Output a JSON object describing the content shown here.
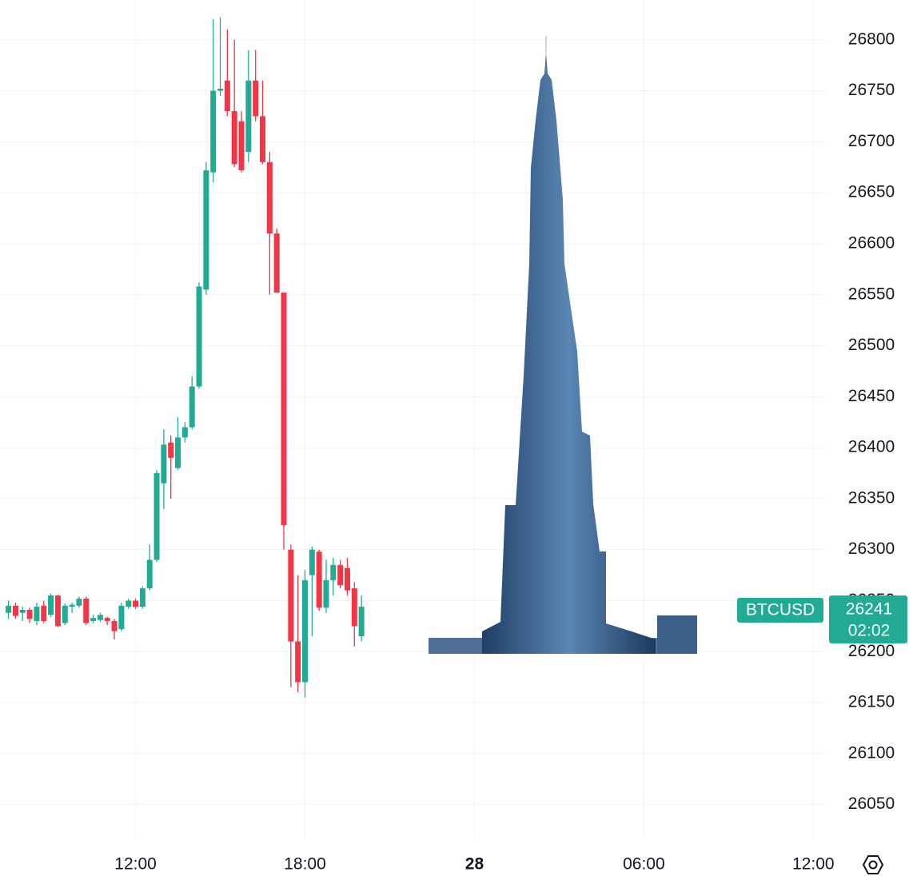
{
  "chart_data": {
    "type": "candlestick",
    "x": [
      7.5,
      7.75,
      8,
      8.25,
      8.5,
      8.75,
      9,
      9.25,
      9.5,
      9.75,
      10,
      10.25,
      10.5,
      10.75,
      11,
      11.25,
      11.5,
      11.75,
      12,
      12.25,
      12.5,
      12.75,
      13,
      13.25,
      13.5,
      13.75,
      14,
      14.25,
      14.5,
      14.75,
      15,
      15.25,
      15.5,
      15.75,
      16,
      16.25,
      16.5,
      16.75,
      17,
      17.25,
      17.5,
      17.75,
      18,
      18.25,
      18.5,
      18.75,
      19,
      19.25,
      19.5,
      19.75,
      20
    ],
    "open": [
      26238,
      26245,
      26238,
      26241,
      26230,
      26245,
      26236,
      26255,
      26228,
      26244,
      26245,
      26252,
      26230,
      26231,
      26233,
      26230,
      26222,
      26244,
      26250,
      26244,
      26262,
      26290,
      26365,
      26405,
      26380,
      26410,
      26420,
      26460,
      26555,
      26670,
      26750,
      26760,
      26730,
      26720,
      26690,
      26760,
      26725,
      26680,
      26610,
      26552,
      26300,
      26210,
      26170,
      26275,
      26298,
      26243,
      26270,
      26285,
      26282,
      26262,
      26215
    ],
    "high": [
      26250,
      26248,
      26244,
      26243,
      26248,
      26250,
      26257,
      26256,
      26247,
      26248,
      26254,
      26254,
      26236,
      26238,
      26234,
      26232,
      26248,
      26252,
      26252,
      26264,
      26305,
      26378,
      26418,
      26412,
      26430,
      26425,
      26470,
      26562,
      26680,
      26820,
      26822,
      26810,
      26800,
      26730,
      26790,
      26790,
      26760,
      26690,
      26615,
      26552,
      26305,
      26275,
      26280,
      26303,
      26300,
      26290,
      26292,
      26290,
      26292,
      26268,
      26255
    ],
    "low": [
      26232,
      26232,
      26230,
      26228,
      26226,
      26228,
      26234,
      26224,
      26226,
      26238,
      26243,
      26226,
      26228,
      26229,
      26226,
      26212,
      26220,
      26242,
      26242,
      26242,
      26260,
      26288,
      26340,
      26350,
      26378,
      26405,
      26418,
      26458,
      26550,
      26660,
      26745,
      26725,
      26675,
      26670,
      26680,
      26720,
      26678,
      26550,
      26552,
      26300,
      26165,
      26160,
      26155,
      26215,
      26240,
      26238,
      26255,
      26262,
      26255,
      26205,
      26210
    ],
    "close": [
      26245,
      26235,
      26241,
      26232,
      26244,
      26230,
      26255,
      26225,
      26245,
      26246,
      26252,
      26228,
      26233,
      26236,
      26230,
      26220,
      26245,
      26250,
      26244,
      26262,
      26290,
      26375,
      26403,
      26390,
      26410,
      26420,
      26460,
      26558,
      26672,
      26750,
      26752,
      26730,
      26678,
      26672,
      26760,
      26725,
      26680,
      26610,
      26552,
      26324,
      26210,
      26170,
      26270,
      26300,
      26243,
      26270,
      26285,
      26265,
      26260,
      26225,
      26244
    ],
    "up_color": "#22ab94",
    "down_color": "#f23645",
    "xlim": [
      7.2,
      36.5
    ],
    "xticks": [
      {
        "value": 12,
        "label": "12:00"
      },
      {
        "value": 18,
        "label": "18:00"
      },
      {
        "value": 24,
        "label": "28"
      },
      {
        "value": 30,
        "label": "06:00"
      },
      {
        "value": 36,
        "label": "12:00"
      }
    ],
    "ylim": [
      26016,
      26839
    ],
    "yticks": [
      26050,
      26100,
      26150,
      26200,
      26250,
      26300,
      26350,
      26400,
      26450,
      26500,
      26550,
      26600,
      26650,
      26700,
      26750,
      26800
    ],
    "grid": true,
    "last": {
      "label": "BTCUSD",
      "value": 26241,
      "countdown": "02:02"
    }
  }
}
